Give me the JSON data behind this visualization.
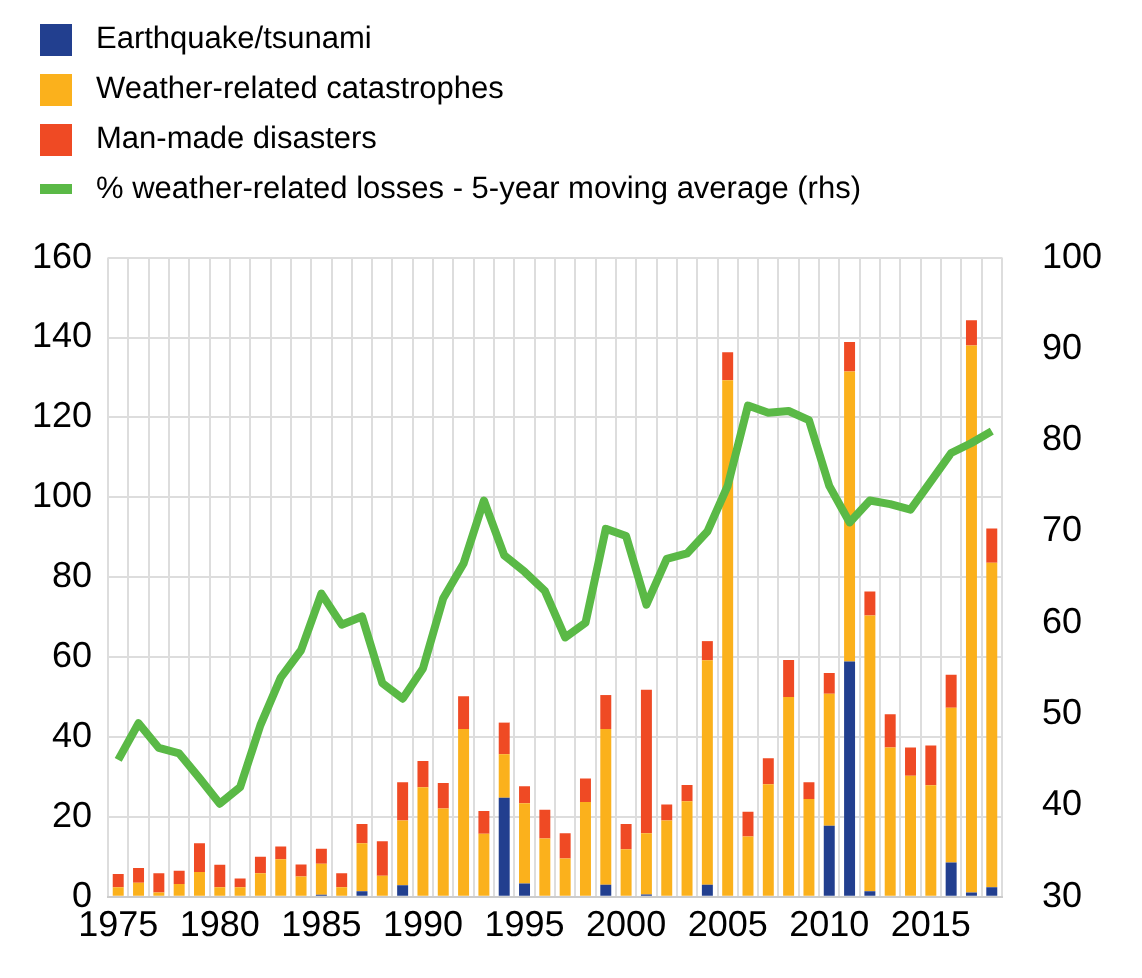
{
  "chart_data": {
    "type": "bar",
    "stacked": true,
    "categories": [
      "1975",
      null,
      null,
      null,
      null,
      "1980",
      null,
      null,
      null,
      null,
      "1985",
      null,
      null,
      null,
      null,
      "1990",
      null,
      null,
      null,
      null,
      "1995",
      null,
      null,
      null,
      null,
      "2000",
      null,
      null,
      null,
      null,
      "2005",
      null,
      null,
      null,
      null,
      "2010",
      null,
      null,
      null,
      null,
      "2015",
      null,
      null,
      null
    ],
    "series": [
      {
        "name": "Earthquake/tsunami",
        "color": "#223f8f",
        "values": [
          0,
          0,
          0,
          0,
          0,
          0,
          0,
          0,
          0,
          0,
          0.5,
          0,
          1.4,
          0,
          2.9,
          0,
          0,
          0,
          0,
          24.8,
          3.3,
          0,
          0,
          0,
          3,
          0,
          0.6,
          0,
          0,
          3,
          0,
          0,
          0,
          0,
          0,
          17.8,
          58.9,
          1.4,
          0,
          0,
          0,
          8.6,
          1.1,
          2.4
        ]
      },
      {
        "name": "Weather-related catastrophes",
        "color": "#fbb11c",
        "values": [
          2.4,
          3.5,
          1.1,
          3.2,
          6.2,
          2.4,
          2.4,
          5.9,
          9.4,
          5.1,
          7.8,
          2.4,
          12,
          5.3,
          16.2,
          27.4,
          22.1,
          42,
          15.8,
          10.9,
          20.1,
          14.6,
          9.6,
          23.7,
          39,
          11.9,
          15.3,
          19.1,
          23.9,
          56.2,
          129.3,
          15.1,
          28.2,
          50,
          24.5,
          33,
          72.6,
          69,
          37.4,
          30.3,
          27.9,
          38.7,
          136.9,
          81.2
        ]
      },
      {
        "name": "Man-made disasters",
        "color": "#ef4a24",
        "values": [
          3.3,
          3.7,
          4.8,
          3.3,
          7.2,
          5.6,
          2.2,
          4.1,
          3.2,
          3,
          3.7,
          3.5,
          4.8,
          8.6,
          9.6,
          6.6,
          6.4,
          8.2,
          5.7,
          7.9,
          4.3,
          7.2,
          6.3,
          5.9,
          8.5,
          6.3,
          35.9,
          4,
          4.1,
          4.8,
          7,
          6.2,
          6.5,
          9.3,
          4.2,
          5.2,
          7.4,
          6,
          8.3,
          7.1,
          10,
          8.3,
          6.3,
          8.6
        ]
      },
      {
        "name": "% weather-related losses - 5-year moving average (rhs)",
        "type": "line",
        "axis": "y2",
        "color": "#5ab946",
        "values": [
          45,
          49,
          46.3,
          45.7,
          43,
          40.2,
          42,
          48.8,
          54,
          57,
          63.2,
          59.8,
          60.7,
          53.4,
          51.7,
          55,
          62.7,
          66.5,
          73.4,
          67.4,
          65.6,
          63.5,
          58.4,
          60,
          70.3,
          69.5,
          62,
          67,
          67.6,
          70,
          75,
          83.8,
          83,
          83.2,
          82.2,
          75,
          71,
          73.4,
          73,
          72.4,
          75.5,
          78.6,
          79.7,
          81
        ]
      }
    ],
    "ylim": [
      0,
      160
    ],
    "yticks": [
      0,
      20,
      40,
      60,
      80,
      100,
      120,
      140,
      160
    ],
    "y2lim": [
      30,
      100
    ],
    "y2ticks": [
      30,
      40,
      50,
      60,
      70,
      80,
      90,
      100
    ],
    "grid": true,
    "legend": "top left",
    "marker": "none",
    "line_style": "solid"
  }
}
